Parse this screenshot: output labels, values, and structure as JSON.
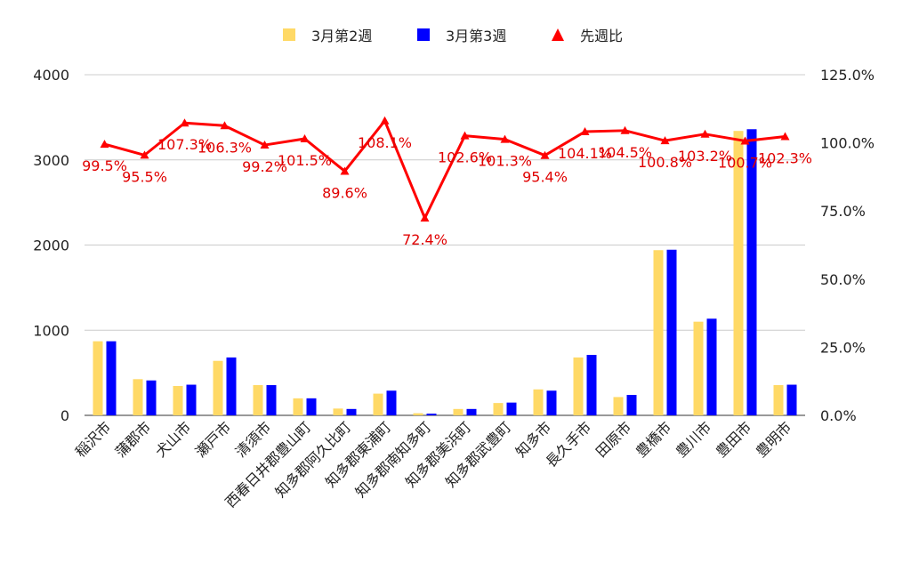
{
  "chart_data": {
    "type": "bar",
    "categories": [
      "稲沢市",
      "蒲郡市",
      "犬山市",
      "瀬戸市",
      "清須市",
      "西春日井郡豊山町",
      "知多郡阿久比町",
      "知多郡東浦町",
      "知多郡南知多町",
      "知多郡美浜町",
      "知多郡武豊町",
      "知多市",
      "長久手市",
      "田原市",
      "豊橋市",
      "豊川市",
      "豊田市",
      "豊明市"
    ],
    "series": [
      {
        "name": "3月第2週",
        "type": "bar",
        "axis": "left",
        "color": "#FFD966",
        "values": [
          870,
          425,
          345,
          640,
          355,
          200,
          80,
          255,
          25,
          75,
          145,
          305,
          680,
          215,
          1940,
          1100,
          3340,
          355
        ]
      },
      {
        "name": "3月第3週",
        "type": "bar",
        "axis": "left",
        "color": "#0000FF",
        "values": [
          870,
          410,
          360,
          680,
          355,
          200,
          75,
          290,
          20,
          75,
          150,
          290,
          710,
          240,
          1945,
          1135,
          3360,
          360
        ]
      },
      {
        "name": "先週比",
        "type": "line",
        "axis": "right",
        "color": "#FF0000",
        "values": [
          99.5,
          95.5,
          107.3,
          106.3,
          99.2,
          101.5,
          89.6,
          108.1,
          72.4,
          102.6,
          101.3,
          95.4,
          104.1,
          104.5,
          100.8,
          103.2,
          100.7,
          102.3
        ],
        "labels": [
          "99.5%",
          "95.5%",
          "107.3%",
          "106.3%",
          "99.2%",
          "101.5%",
          "89.6%",
          "108.1%",
          "72.4%",
          "102.6%",
          "101.3%",
          "95.4%",
          "104.1%",
          "104.5%",
          "100.8%",
          "103.2%",
          "100.7%",
          "102.3%"
        ]
      }
    ],
    "y_left": {
      "ylim": [
        0,
        4000
      ],
      "ticks": [
        "0",
        "1000",
        "2000",
        "3000",
        "4000"
      ]
    },
    "y_right": {
      "ylim": [
        0,
        125
      ],
      "ticks": [
        "0.0%",
        "25.0%",
        "50.0%",
        "75.0%",
        "100.0%",
        "125.0%"
      ]
    },
    "grid": true,
    "legend": "top"
  }
}
